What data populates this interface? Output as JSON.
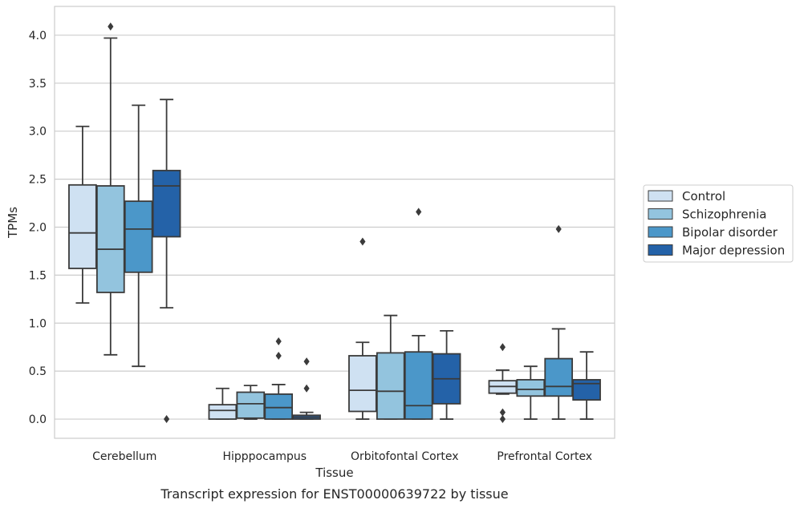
{
  "chart_data": {
    "type": "box",
    "caption": "Transcript expression for ENST00000639722 by tissue",
    "xlabel": "Tissue",
    "ylabel": "TPMs",
    "ylim": [
      -0.2,
      4.3
    ],
    "yticks": [
      "0.0",
      "0.5",
      "1.0",
      "1.5",
      "2.0",
      "2.5",
      "3.0",
      "3.5",
      "4.0"
    ],
    "grid": true,
    "legend_position": "right",
    "categories": [
      "Cerebellum",
      "Hipppocampus",
      "Orbitofontal Cortex",
      "Prefrontal Cortex"
    ],
    "series": [
      {
        "name": "Control",
        "color": "#cfe1f2",
        "boxes": [
          {
            "whislo": 1.21,
            "q1": 1.57,
            "med": 1.94,
            "q3": 2.44,
            "whishi": 3.05,
            "fliers": []
          },
          {
            "whislo": 0.0,
            "q1": 0.0,
            "med": 0.09,
            "q3": 0.15,
            "whishi": 0.32,
            "fliers": []
          },
          {
            "whislo": 0.0,
            "q1": 0.08,
            "med": 0.3,
            "q3": 0.66,
            "whishi": 0.8,
            "fliers": [
              1.85
            ]
          },
          {
            "whislo": 0.26,
            "q1": 0.27,
            "med": 0.34,
            "q3": 0.4,
            "whishi": 0.51,
            "fliers": [
              0.75,
              0.07,
              0.0
            ]
          }
        ]
      },
      {
        "name": "Schizophrenia",
        "color": "#93c4de",
        "boxes": [
          {
            "whislo": 0.67,
            "q1": 1.32,
            "med": 1.77,
            "q3": 2.43,
            "whishi": 3.97,
            "fliers": [
              4.09
            ]
          },
          {
            "whislo": 0.0,
            "q1": 0.01,
            "med": 0.16,
            "q3": 0.28,
            "whishi": 0.35,
            "fliers": []
          },
          {
            "whislo": 0.0,
            "q1": 0.0,
            "med": 0.29,
            "q3": 0.69,
            "whishi": 1.08,
            "fliers": []
          },
          {
            "whislo": 0.0,
            "q1": 0.24,
            "med": 0.31,
            "q3": 0.41,
            "whishi": 0.55,
            "fliers": []
          }
        ]
      },
      {
        "name": "Bipolar disorder",
        "color": "#4b97c9",
        "boxes": [
          {
            "whislo": 0.55,
            "q1": 1.53,
            "med": 1.98,
            "q3": 2.27,
            "whishi": 3.27,
            "fliers": []
          },
          {
            "whislo": 0.0,
            "q1": 0.0,
            "med": 0.12,
            "q3": 0.26,
            "whishi": 0.36,
            "fliers": [
              0.81,
              0.66
            ]
          },
          {
            "whislo": 0.0,
            "q1": 0.0,
            "med": 0.14,
            "q3": 0.7,
            "whishi": 0.87,
            "fliers": [
              2.16
            ]
          },
          {
            "whislo": 0.0,
            "q1": 0.24,
            "med": 0.34,
            "q3": 0.63,
            "whishi": 0.94,
            "fliers": [
              1.98
            ]
          }
        ]
      },
      {
        "name": "Major depression",
        "color": "#2462a8",
        "boxes": [
          {
            "whislo": 1.16,
            "q1": 1.9,
            "med": 2.43,
            "q3": 2.59,
            "whishi": 3.33,
            "fliers": [
              0.0
            ]
          },
          {
            "whislo": 0.0,
            "q1": 0.0,
            "med": 0.02,
            "q3": 0.04,
            "whishi": 0.07,
            "fliers": [
              0.6,
              0.32
            ]
          },
          {
            "whislo": 0.0,
            "q1": 0.16,
            "med": 0.42,
            "q3": 0.68,
            "whishi": 0.92,
            "fliers": []
          },
          {
            "whislo": 0.0,
            "q1": 0.2,
            "med": 0.37,
            "q3": 0.41,
            "whishi": 0.7,
            "fliers": []
          }
        ]
      }
    ]
  }
}
